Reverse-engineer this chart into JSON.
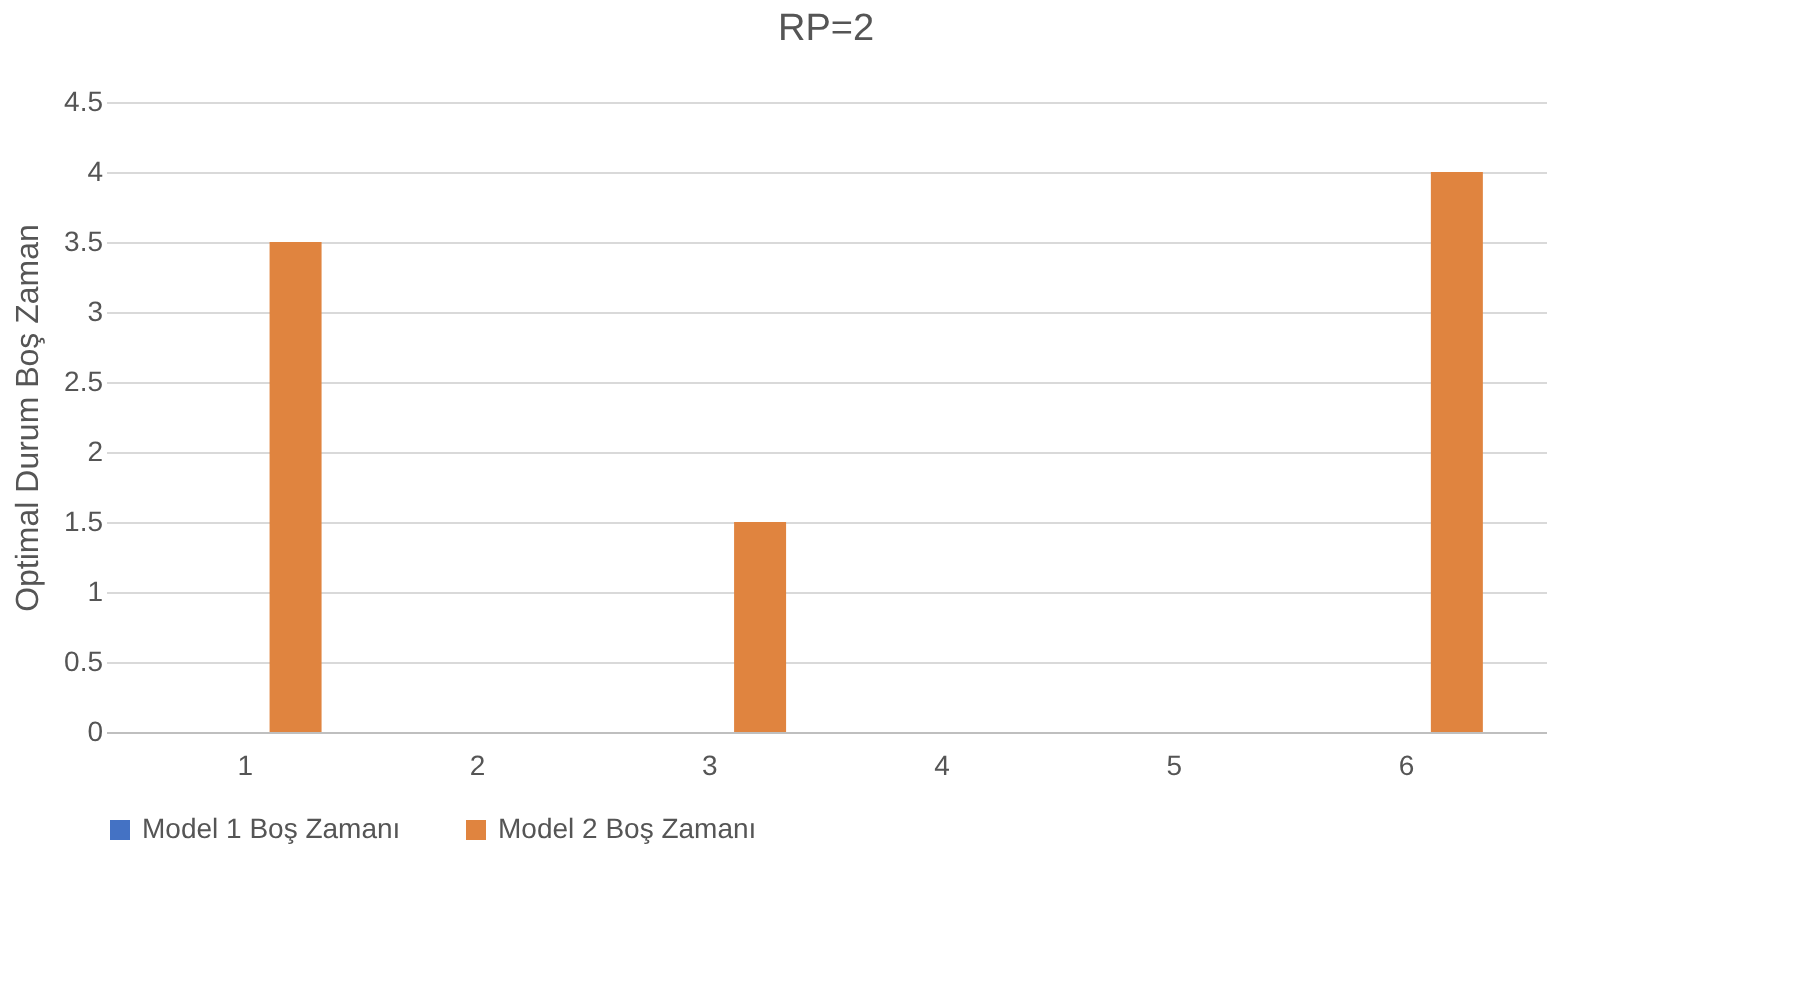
{
  "chart_data": {
    "type": "bar",
    "title": "RP=2",
    "ylabel": "Optimal Durum Boş Zaman",
    "categories": [
      "1",
      "2",
      "3",
      "4",
      "5",
      "6"
    ],
    "series": [
      {
        "name": "Model 1 Boş Zamanı",
        "color": "#4472c4",
        "values": [
          0,
          0,
          0,
          0,
          0,
          0
        ]
      },
      {
        "name": "Model 2 Boş Zamanı",
        "color": "#e0843f",
        "values": [
          3.5,
          0,
          1.5,
          0,
          0,
          4
        ]
      }
    ],
    "ylim": [
      0,
      4.5
    ],
    "yticks": [
      0,
      0.5,
      1,
      1.5,
      2,
      2.5,
      3,
      3.5,
      4,
      4.5
    ],
    "grid": "y",
    "legend": "bottom"
  }
}
